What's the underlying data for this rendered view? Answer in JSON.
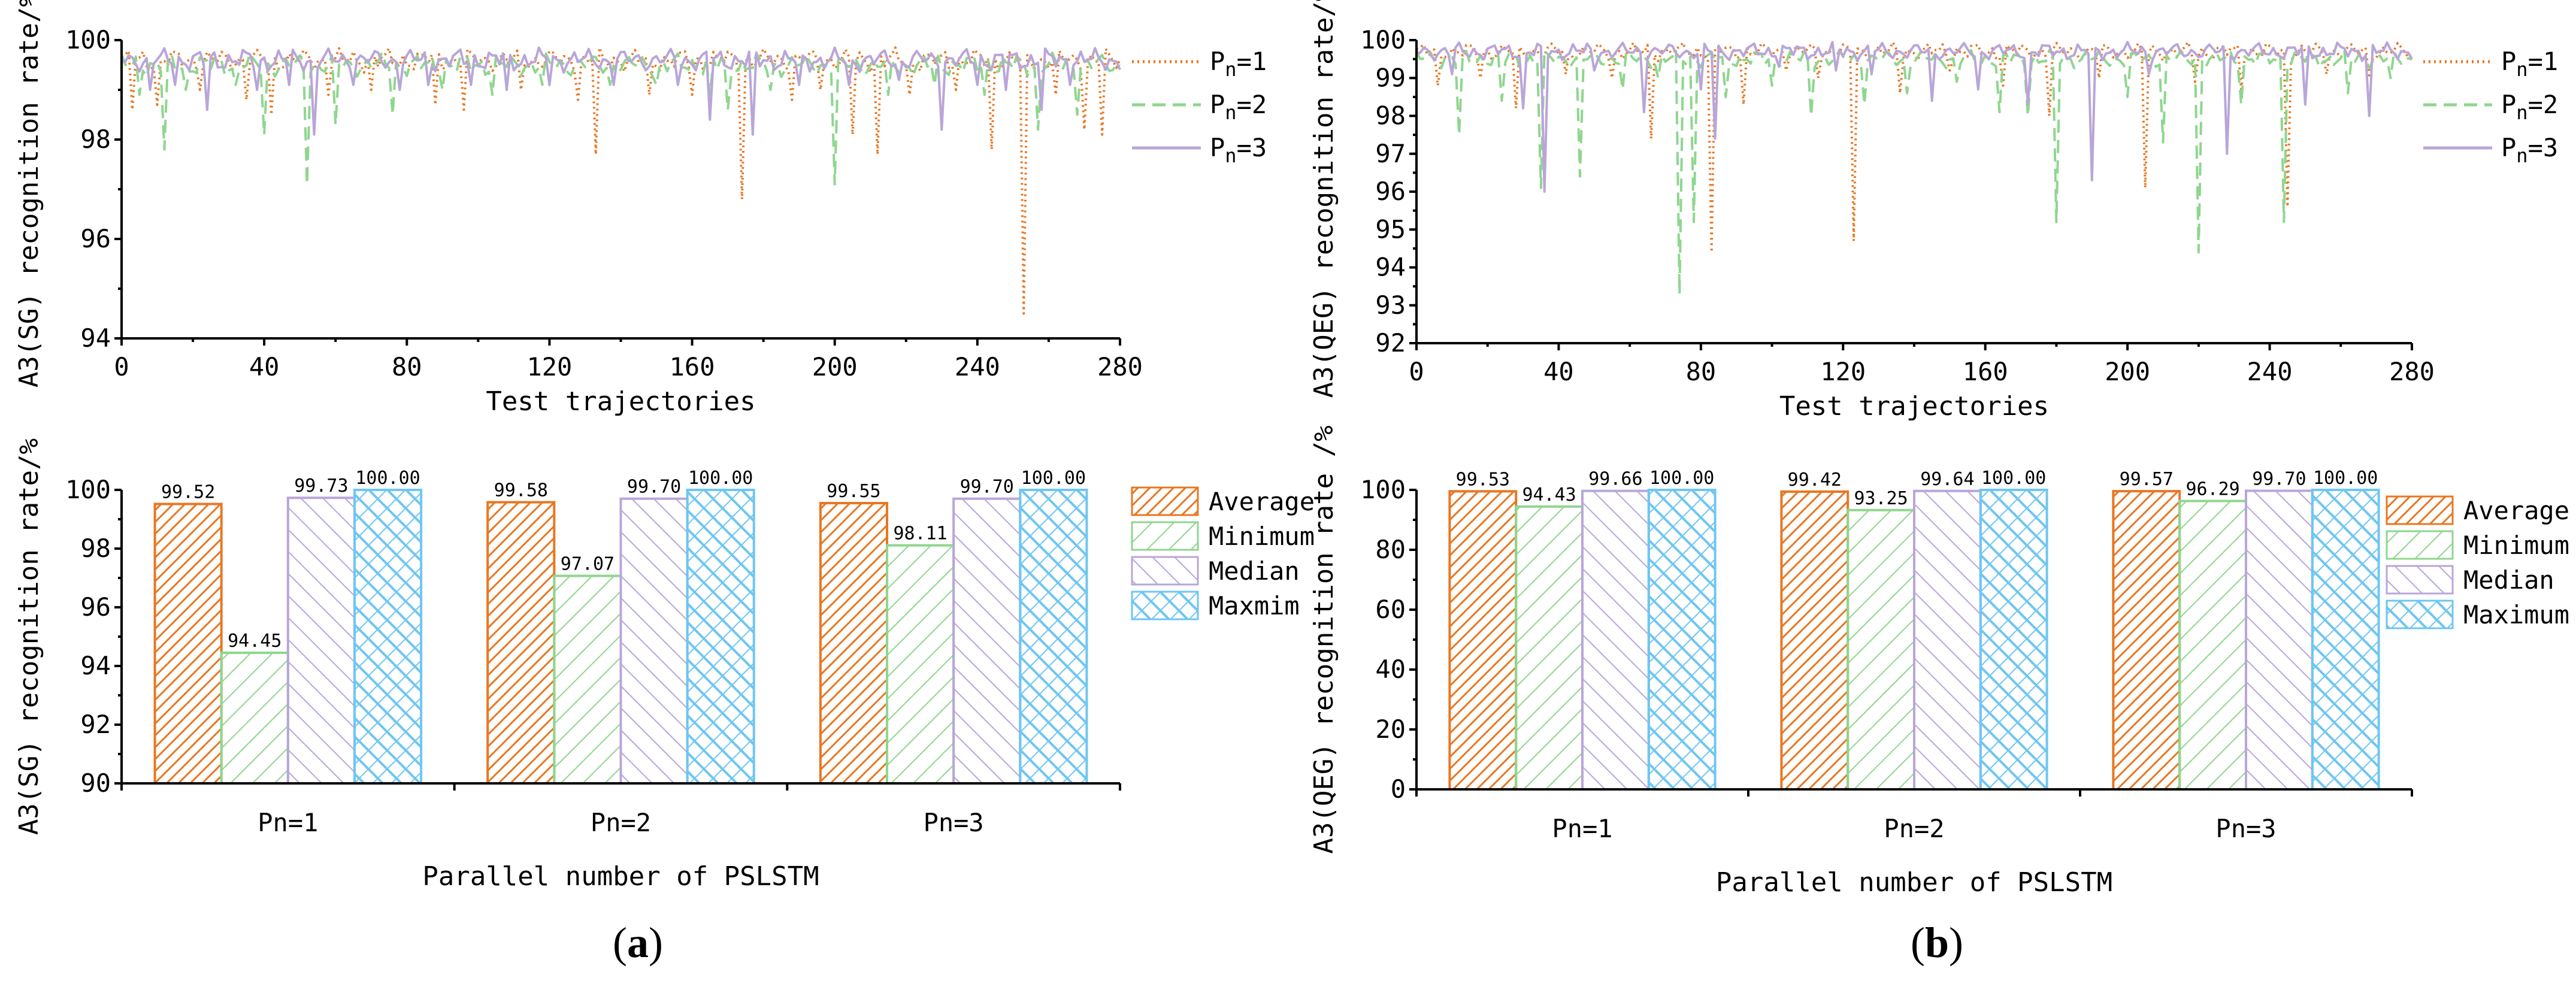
{
  "colors": {
    "orange": "#E87722",
    "green": "#8FD68F",
    "purple": "#B9A6D8",
    "blue": "#6EC6F2"
  },
  "panels": [
    {
      "label": "(a)",
      "label_open": "(",
      "label_letter": "a",
      "label_close": ")",
      "chart_data": [
        {
          "type": "line",
          "ylabel": "A3(SG) recognition rate/%",
          "xlabel": "Test trajectories",
          "xlim": [
            0,
            280
          ],
          "ylim": [
            94,
            100
          ],
          "x_ticks": [
            0,
            40,
            80,
            120,
            160,
            200,
            240,
            280
          ],
          "y_ticks": [
            94,
            96,
            98,
            100
          ],
          "legend": [
            "P_n=1",
            "P_n=2",
            "P_n=3"
          ],
          "base_levels": [
            99.6,
            99.5,
            99.6
          ],
          "series": [
            {
              "name": "P_n=1",
              "style": "dotted",
              "dips": [
                [
                  3,
                  98.6
                ],
                [
                  10,
                  98.7
                ],
                [
                  22,
                  99.0
                ],
                [
                  35,
                  98.8
                ],
                [
                  42,
                  98.5
                ],
                [
                  58,
                  98.9
                ],
                [
                  70,
                  99.0
                ],
                [
                  88,
                  98.7
                ],
                [
                  96,
                  98.6
                ],
                [
                  112,
                  99.0
                ],
                [
                  128,
                  98.8
                ],
                [
                  133,
                  97.7
                ],
                [
                  148,
                  98.9
                ],
                [
                  160,
                  98.9
                ],
                [
                  174,
                  96.8
                ],
                [
                  188,
                  98.8
                ],
                [
                  196,
                  99.0
                ],
                [
                  205,
                  98.1
                ],
                [
                  212,
                  97.7
                ],
                [
                  221,
                  98.9
                ],
                [
                  234,
                  99.0
                ],
                [
                  244,
                  97.8
                ],
                [
                  253,
                  94.5
                ],
                [
                  262,
                  98.9
                ],
                [
                  270,
                  98.2
                ],
                [
                  275,
                  98.1
                ]
              ]
            },
            {
              "name": "P_n=2",
              "style": "dashed",
              "dips": [
                [
                  5,
                  98.9
                ],
                [
                  12,
                  97.8
                ],
                [
                  18,
                  99.0
                ],
                [
                  32,
                  99.1
                ],
                [
                  40,
                  98.1
                ],
                [
                  52,
                  97.1
                ],
                [
                  60,
                  98.3
                ],
                [
                  76,
                  98.5
                ],
                [
                  90,
                  99.0
                ],
                [
                  104,
                  98.9
                ],
                [
                  118,
                  99.1
                ],
                [
                  137,
                  99.1
                ],
                [
                  150,
                  99.1
                ],
                [
                  165,
                  98.9
                ],
                [
                  170,
                  98.6
                ],
                [
                  182,
                  99.0
                ],
                [
                  200,
                  97.1
                ],
                [
                  215,
                  98.9
                ],
                [
                  228,
                  99.1
                ],
                [
                  242,
                  98.9
                ],
                [
                  257,
                  98.2
                ],
                [
                  268,
                  98.5
                ]
              ]
            },
            {
              "name": "P_n=3",
              "style": "solid",
              "dips": [
                [
                  8,
                  99.0
                ],
                [
                  15,
                  99.1
                ],
                [
                  24,
                  98.6
                ],
                [
                  38,
                  99.0
                ],
                [
                  47,
                  99.1
                ],
                [
                  54,
                  98.1
                ],
                [
                  65,
                  99.1
                ],
                [
                  78,
                  99.0
                ],
                [
                  86,
                  99.1
                ],
                [
                  98,
                  99.1
                ],
                [
                  108,
                  99.0
                ],
                [
                  120,
                  99.1
                ],
                [
                  138,
                  99.1
                ],
                [
                  156,
                  99.1
                ],
                [
                  165,
                  98.4
                ],
                [
                  177,
                  98.1
                ],
                [
                  190,
                  99.1
                ],
                [
                  204,
                  99.1
                ],
                [
                  218,
                  99.2
                ],
                [
                  230,
                  98.2
                ],
                [
                  240,
                  99.1
                ],
                [
                  248,
                  99.0
                ],
                [
                  258,
                  98.6
                ],
                [
                  266,
                  99.1
                ]
              ]
            }
          ]
        },
        {
          "type": "bar",
          "ylabel": "A3(SG) recognition rate/%",
          "xlabel": "Parallel number of PSLSTM",
          "categories": [
            "Pn=1",
            "Pn=2",
            "Pn=3"
          ],
          "ylim": [
            90,
            100
          ],
          "y_ticks": [
            90,
            92,
            94,
            96,
            98,
            100
          ],
          "legend": [
            "Average",
            "Minimum",
            "Median",
            "Maxmim"
          ],
          "series": [
            {
              "name": "Average",
              "values": [
                99.52,
                99.58,
                99.55
              ],
              "labels": [
                "99.52",
                "99.58",
                "99.55"
              ]
            },
            {
              "name": "Minimum",
              "values": [
                94.45,
                97.07,
                98.11
              ],
              "labels": [
                "94.45",
                "97.07",
                "98.11"
              ]
            },
            {
              "name": "Median",
              "values": [
                99.73,
                99.7,
                99.7
              ],
              "labels": [
                "99.73",
                "99.70",
                "99.70"
              ]
            },
            {
              "name": "Maxmim",
              "values": [
                100.0,
                100.0,
                100.0
              ],
              "labels": [
                "100.00",
                "100.00",
                "100.00"
              ]
            }
          ]
        }
      ]
    },
    {
      "label": "(b)",
      "label_open": "(",
      "label_letter": "b",
      "label_close": ")",
      "chart_data": [
        {
          "type": "line",
          "ylabel": "A3(QEG) recognition rate/%",
          "xlabel": "Test trajectories",
          "xlim": [
            0,
            280
          ],
          "ylim": [
            92,
            100
          ],
          "x_ticks": [
            0,
            40,
            80,
            120,
            160,
            200,
            240,
            280
          ],
          "y_ticks": [
            92,
            93,
            94,
            95,
            96,
            97,
            98,
            99,
            100
          ],
          "legend": [
            "P_n=1",
            "P_n=2",
            "P_n=3"
          ],
          "base_levels": [
            99.7,
            99.5,
            99.7
          ],
          "series": [
            {
              "name": "P_n=1",
              "style": "dotted",
              "dips": [
                [
                  6,
                  98.8
                ],
                [
                  18,
                  99.0
                ],
                [
                  28,
                  98.2
                ],
                [
                  42,
                  99.1
                ],
                [
                  55,
                  99.0
                ],
                [
                  66,
                  97.4
                ],
                [
                  83,
                  94.4
                ],
                [
                  92,
                  98.3
                ],
                [
                  104,
                  99.2
                ],
                [
                  113,
                  99.0
                ],
                [
                  123,
                  94.7
                ],
                [
                  136,
                  98.6
                ],
                [
                  150,
                  99.2
                ],
                [
                  165,
                  98.8
                ],
                [
                  178,
                  98.0
                ],
                [
                  192,
                  99.0
                ],
                [
                  205,
                  96.1
                ],
                [
                  219,
                  98.9
                ],
                [
                  232,
                  98.7
                ],
                [
                  245,
                  95.6
                ],
                [
                  256,
                  99.1
                ],
                [
                  268,
                  99.0
                ]
              ]
            },
            {
              "name": "P_n=2",
              "style": "dashed",
              "dips": [
                [
                  12,
                  97.5
                ],
                [
                  24,
                  98.4
                ],
                [
                  35,
                  96.1
                ],
                [
                  46,
                  96.4
                ],
                [
                  58,
                  98.7
                ],
                [
                  68,
                  99.0
                ],
                [
                  74,
                  93.3
                ],
                [
                  78,
                  95.2
                ],
                [
                  87,
                  98.5
                ],
                [
                  100,
                  98.8
                ],
                [
                  111,
                  98.0
                ],
                [
                  126,
                  98.3
                ],
                [
                  138,
                  98.6
                ],
                [
                  152,
                  98.9
                ],
                [
                  164,
                  98.1
                ],
                [
                  172,
                  98.0
                ],
                [
                  180,
                  95.2
                ],
                [
                  200,
                  98.5
                ],
                [
                  210,
                  97.3
                ],
                [
                  220,
                  94.4
                ],
                [
                  232,
                  98.3
                ],
                [
                  244,
                  95.2
                ],
                [
                  262,
                  98.6
                ],
                [
                  274,
                  99.0
                ]
              ]
            },
            {
              "name": "P_n=3",
              "style": "solid",
              "dips": [
                [
                  10,
                  99.1
                ],
                [
                  30,
                  98.2
                ],
                [
                  36,
                  96.0
                ],
                [
                  50,
                  99.2
                ],
                [
                  64,
                  98.1
                ],
                [
                  80,
                  98.7
                ],
                [
                  84,
                  97.4
                ],
                [
                  102,
                  99.3
                ],
                [
                  118,
                  99.2
                ],
                [
                  128,
                  99.1
                ],
                [
                  145,
                  98.4
                ],
                [
                  158,
                  98.7
                ],
                [
                  172,
                  98.3
                ],
                [
                  190,
                  96.3
                ],
                [
                  206,
                  99.1
                ],
                [
                  228,
                  97.0
                ],
                [
                  250,
                  98.3
                ],
                [
                  268,
                  98.0
                ]
              ]
            }
          ]
        },
        {
          "type": "bar",
          "ylabel": "A3(QEG) recognition rate /%",
          "xlabel": "Parallel number of PSLSTM",
          "categories": [
            "Pn=1",
            "Pn=2",
            "Pn=3"
          ],
          "ylim": [
            0,
            100
          ],
          "y_ticks": [
            0,
            20,
            40,
            60,
            80,
            100
          ],
          "legend": [
            "Average",
            "Minimum",
            "Median",
            "Maximum"
          ],
          "series": [
            {
              "name": "Average",
              "values": [
                99.53,
                99.42,
                99.57
              ],
              "labels": [
                "99.53",
                "99.42",
                "99.57"
              ]
            },
            {
              "name": "Minimum",
              "values": [
                94.43,
                93.25,
                96.29
              ],
              "labels": [
                "94.43",
                "93.25",
                "96.29"
              ]
            },
            {
              "name": "Median",
              "values": [
                99.66,
                99.64,
                99.7
              ],
              "labels": [
                "99.66",
                "99.64",
                "99.70"
              ]
            },
            {
              "name": "Maximum",
              "values": [
                100.0,
                100.0,
                100.0
              ],
              "labels": [
                "100.00",
                "100.00",
                "100.00"
              ]
            }
          ]
        }
      ]
    }
  ]
}
